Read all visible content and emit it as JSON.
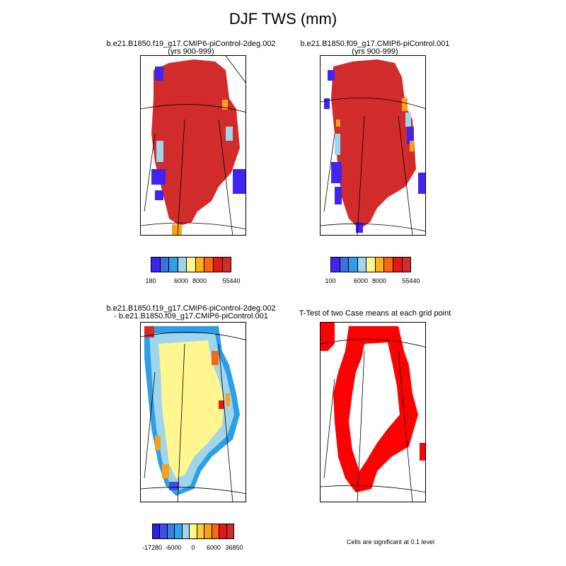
{
  "title": "DJF TWS (mm)",
  "panels": [
    {
      "id": "case1",
      "title_line1": "b.e21.B1850.f19_g17.CMIP6-piControl-2deg.002",
      "title_line2": "(yrs 900-999)",
      "colorbar": {
        "colors": [
          "#4124f0",
          "#3f6fdf",
          "#2e9fe6",
          "#9fd6ec",
          "#fff68f",
          "#fbb019",
          "#fa6614",
          "#e41719",
          "#d22b2b"
        ],
        "tick_labels": [
          "180",
          "6000",
          "8000",
          "55440"
        ]
      }
    },
    {
      "id": "case2",
      "title_line1": "b.e21.B1850.f09_g17.CMIP6-piControl.001",
      "title_line2": "(yrs 900-999)",
      "colorbar": {
        "colors": [
          "#4124f0",
          "#3f6fdf",
          "#2e9fe6",
          "#9fd6ec",
          "#fff68f",
          "#fbb019",
          "#fa6614",
          "#e41719",
          "#d22b2b"
        ],
        "tick_labels": [
          "100",
          "6000",
          "8000",
          "55440"
        ]
      }
    },
    {
      "id": "diff",
      "title_line1": "b.e21.B1850.f19_g17.CMIP6-piControl-2deg.002",
      "title_line2": "- b.e21.B1850.f09_g17.CMIP6-piControl.001",
      "colorbar": {
        "colors": [
          "#2a22e0",
          "#3f4fe6",
          "#3f7fe3",
          "#2ea4ea",
          "#9fd6ec",
          "#fff68f",
          "#fbce2b",
          "#fba019",
          "#fa6614",
          "#e41719",
          "#d22b2b"
        ],
        "tick_labels": [
          "-17280",
          "-6000",
          "0",
          "6000",
          "36850"
        ]
      }
    },
    {
      "id": "ttest",
      "title_line1": "T-Test of two Case means at each grid point",
      "title_line2": "",
      "note": "Cells are significant at 0.1 level",
      "sig_color": "#ff0000"
    }
  ],
  "map_colors": {
    "ice_sheet": "#d22b2b",
    "coast_blue": "#4124f0",
    "coast_lightblue": "#9fd6ec",
    "coast_orange": "#fba019",
    "diff_interior": "#fff68f",
    "sig_red": "#ff0000"
  }
}
